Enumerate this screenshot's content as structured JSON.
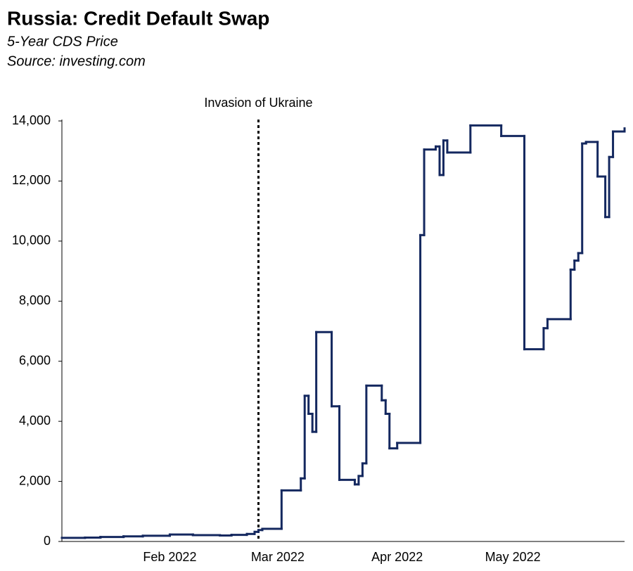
{
  "chart_data": {
    "type": "step-line",
    "title": "Russia: Credit Default Swap",
    "subtitle": "5-Year CDS Price",
    "source": "Source: investing.com",
    "x": [
      "2022-01-04",
      "2022-01-10",
      "2022-01-14",
      "2022-01-20",
      "2022-01-25",
      "2022-02-01",
      "2022-02-07",
      "2022-02-14",
      "2022-02-17",
      "2022-02-21",
      "2022-02-23",
      "2022-02-24",
      "2022-02-25",
      "2022-03-02",
      "2022-03-07",
      "2022-03-08",
      "2022-03-09",
      "2022-03-10",
      "2022-03-11",
      "2022-03-15",
      "2022-03-17",
      "2022-03-21",
      "2022-03-22",
      "2022-03-23",
      "2022-03-24",
      "2022-03-28",
      "2022-03-29",
      "2022-03-30",
      "2022-04-01",
      "2022-04-07",
      "2022-04-08",
      "2022-04-11",
      "2022-04-12",
      "2022-04-13",
      "2022-04-14",
      "2022-04-20",
      "2022-04-28",
      "2022-05-04",
      "2022-05-09",
      "2022-05-10",
      "2022-05-16",
      "2022-05-17",
      "2022-05-18",
      "2022-05-19",
      "2022-05-20",
      "2022-05-23",
      "2022-05-25",
      "2022-05-26",
      "2022-05-27",
      "2022-05-30"
    ],
    "series": [
      {
        "name": "5-Year CDS Price",
        "color": "#14285f",
        "values": [
          120,
          130,
          150,
          170,
          190,
          230,
          210,
          200,
          220,
          250,
          320,
          380,
          420,
          1700,
          2100,
          4850,
          4250,
          3650,
          6970,
          4500,
          2050,
          1900,
          2180,
          2600,
          5190,
          4700,
          4250,
          3100,
          3280,
          10200,
          13050,
          13150,
          12200,
          13350,
          12950,
          13850,
          13500,
          6400,
          7100,
          7400,
          9050,
          9350,
          9600,
          13250,
          13300,
          12150,
          10800,
          12800,
          13650,
          13750
        ]
      }
    ],
    "xlim": [
      "2022-01-04",
      "2022-05-30"
    ],
    "xticks": [
      {
        "value": "2022-02-01",
        "label": "Feb 2022"
      },
      {
        "value": "2022-03-01",
        "label": "Mar 2022"
      },
      {
        "value": "2022-04-01",
        "label": "Apr 2022"
      },
      {
        "value": "2022-05-01",
        "label": "May 2022"
      }
    ],
    "ylim": [
      0,
      14000
    ],
    "yticks": [
      0,
      {
        "value": 2000,
        "label": "2,000"
      },
      {
        "value": 4000,
        "label": "4,000"
      },
      {
        "value": 6000,
        "label": "6,000"
      },
      {
        "value": 8000,
        "label": "8,000"
      },
      {
        "value": 10000,
        "label": "10,000"
      },
      {
        "value": 12000,
        "label": "12,000"
      },
      {
        "value": 14000,
        "label": "14,000"
      }
    ],
    "annotation": {
      "x": "2022-02-24",
      "label": "Invasion of Ukraine"
    }
  }
}
